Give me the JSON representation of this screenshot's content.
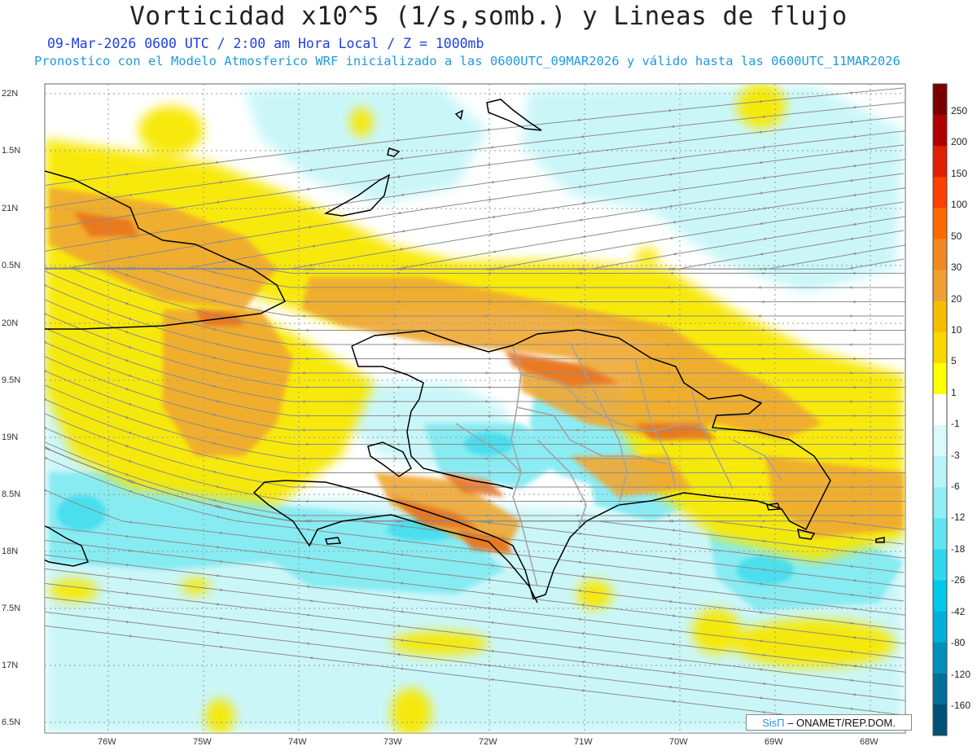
{
  "header": {
    "title": "Vorticidad x10^5 (1/s,somb.) y Lineas de flujo",
    "subtitle_line1": "09-Mar-2026 0600 UTC / 2:00 am Hora Local / Z = 1000mb",
    "subtitle_line2": "Pronostico con el Modelo Atmosferico WRF inicializado a las 0600UTC_09MAR2026 y válido hasta las  0600UTC_11MAR2026"
  },
  "axes": {
    "lat_labels": [
      "22N",
      "1.5N",
      "21N",
      "0.5N",
      "20N",
      "9.5N",
      "19N",
      "8.5N",
      "18N",
      "7.5N",
      "17N",
      "6.5N"
    ],
    "lon_labels": [
      "76W",
      "75W",
      "74W",
      "73W",
      "72W",
      "71W",
      "70W",
      "69W",
      "68W"
    ]
  },
  "colorbar": {
    "labels": [
      "250",
      "200",
      "150",
      "100",
      "50",
      "30",
      "20",
      "10",
      "5",
      "1",
      "-1",
      "-3",
      "-6",
      "-12",
      "-18",
      "-26",
      "-42",
      "-80",
      "-120",
      "-160"
    ],
    "colors": [
      "#7a0000",
      "#b00000",
      "#e02000",
      "#ff4000",
      "#ff6a00",
      "#f08a20",
      "#f0a030",
      "#f5bd00",
      "#f8d800",
      "#ffff00",
      "#ffffff",
      "#d8fafa",
      "#b8f4f8",
      "#90eef4",
      "#60e4f0",
      "#30d8ee",
      "#00c8e8",
      "#00b0d8",
      "#0090bc",
      "#007098",
      "#005078"
    ]
  },
  "map": {
    "projection_note": "",
    "field": "vorticity",
    "streamline_color": "#888888",
    "coast_color": "#000000",
    "border_color": "#9a9a9a"
  },
  "credit": {
    "brand": "SisΠ",
    "text": " – ONAMET/REP.DOM."
  }
}
